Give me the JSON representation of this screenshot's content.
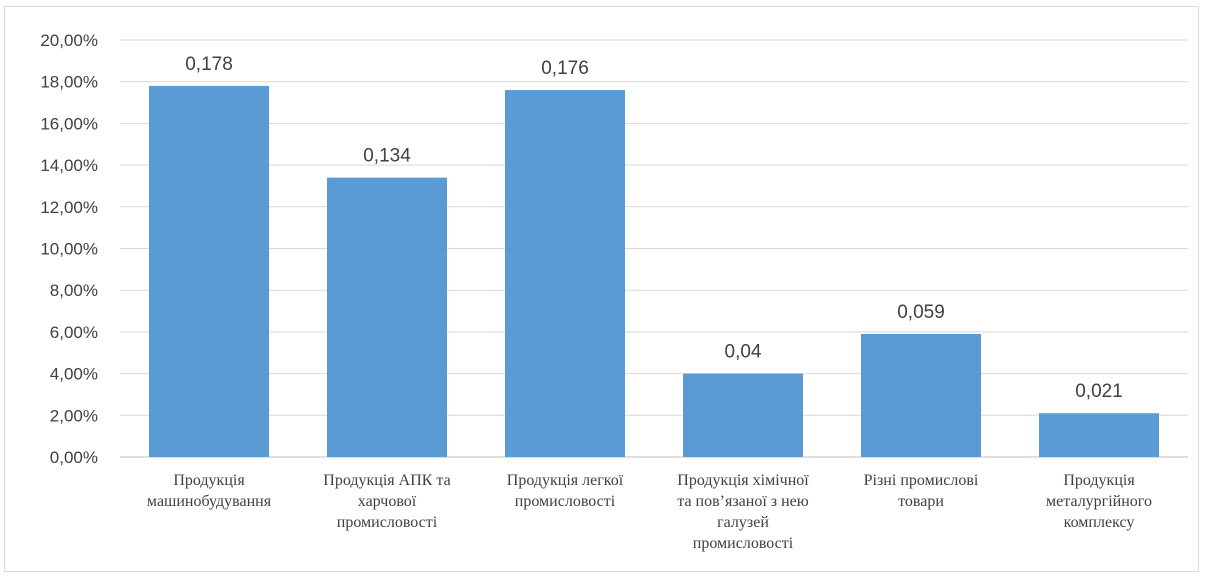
{
  "chart_data": {
    "type": "bar",
    "categories": [
      [
        "Продукція",
        "машинобудування"
      ],
      [
        "Продукція АПК та",
        "харчової",
        "промисловості"
      ],
      [
        "Продукція легкої",
        "промисловості"
      ],
      [
        "Продукція хімічної",
        "та пов’язаної з нею",
        "галузей",
        "промисловості"
      ],
      [
        "Різні промислові",
        "товари"
      ],
      [
        "Продукція",
        "металургійного",
        "комплексу"
      ]
    ],
    "values": [
      0.178,
      0.134,
      0.176,
      0.04,
      0.059,
      0.021
    ],
    "data_labels": [
      "0,178",
      "0,134",
      "0,176",
      "0,04",
      "0,059",
      "0,021"
    ],
    "y_ticks": [
      "0,00%",
      "2,00%",
      "4,00%",
      "6,00%",
      "8,00%",
      "10,00%",
      "12,00%",
      "14,00%",
      "16,00%",
      "18,00%",
      "20,00%"
    ],
    "ylim": [
      0,
      0.2
    ],
    "title": "",
    "xlabel": "",
    "ylabel": "",
    "grid": true,
    "bar_color": "#5b9bd5"
  }
}
